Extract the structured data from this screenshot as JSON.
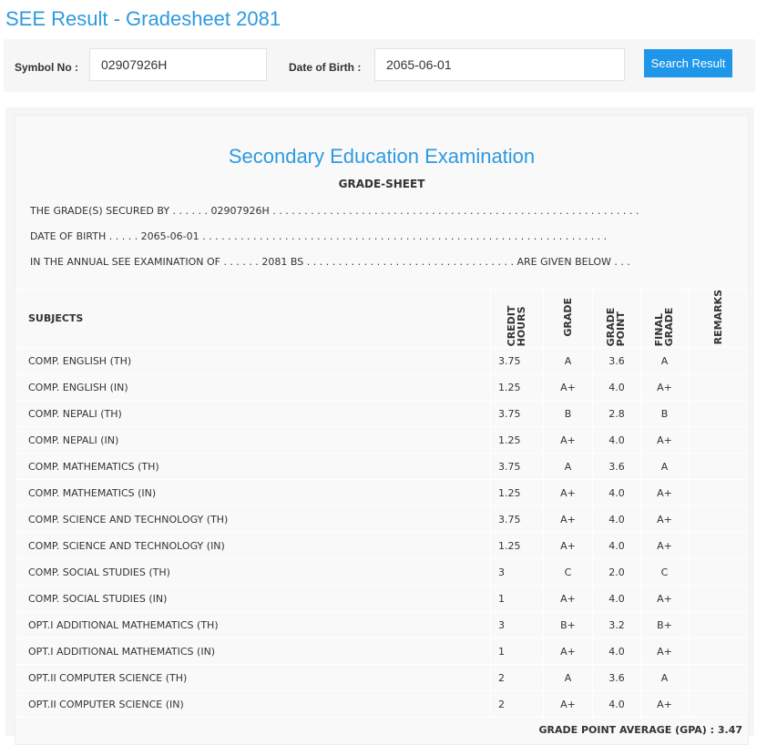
{
  "title": "SEE Result - Gradesheet 2081",
  "search": {
    "symbol_label": "Symbol No :",
    "symbol_value": "02907926H",
    "dob_label": "Date of Birth :",
    "dob_value": "2065-06-01",
    "button": "Search Result"
  },
  "sheet": {
    "heading": "Secondary Education Examination",
    "subheading": "GRADE-SHEET",
    "line1": "THE GRADE(S) SECURED BY . . . . . . 02907926H . . . . . . . . . . . . . . . . . . . . . . . . . . . . . . . . . . . . . . . . . . . . . . . . . . . . . . . . . .",
    "line2": "DATE OF BIRTH . . . . . 2065-06-01 . . . . . . . . . . . . . . . . . . . . . . . . . . . . . . . . . . . . . . . . . . . . . . . . . . . . . . . . . . . . . . . .",
    "line3": "IN THE ANNUAL SEE EXAMINATION OF . . . . . . 2081 BS . . . . . . . . . . . . . . . . . . . . . . . . . . . . . . . . . ARE GIVEN BELOW . . .",
    "headers": {
      "subjects": "SUBJECTS",
      "credit": "CREDIT HOURS",
      "grade": "GRADE",
      "gp": "GRADE POINT",
      "final": "FINAL GRADE",
      "remarks": "REMARKS"
    },
    "rows": [
      [
        "COMP. ENGLISH (TH)",
        "3.75",
        "A",
        "3.6",
        "A"
      ],
      [
        "COMP. ENGLISH (IN)",
        "1.25",
        "A+",
        "4.0",
        "A+"
      ],
      [
        "COMP. NEPALI (TH)",
        "3.75",
        "B",
        "2.8",
        "B"
      ],
      [
        "COMP. NEPALI (IN)",
        "1.25",
        "A+",
        "4.0",
        "A+"
      ],
      [
        "COMP. MATHEMATICS (TH)",
        "3.75",
        "A",
        "3.6",
        "A"
      ],
      [
        "COMP. MATHEMATICS (IN)",
        "1.25",
        "A+",
        "4.0",
        "A+"
      ],
      [
        "COMP. SCIENCE AND TECHNOLOGY (TH)",
        "3.75",
        "A+",
        "4.0",
        "A+"
      ],
      [
        "COMP. SCIENCE AND TECHNOLOGY (IN)",
        "1.25",
        "A+",
        "4.0",
        "A+"
      ],
      [
        "COMP. SOCIAL STUDIES (TH)",
        "3",
        "C",
        "2.0",
        "C"
      ],
      [
        "COMP. SOCIAL STUDIES (IN)",
        "1",
        "A+",
        "4.0",
        "A+"
      ],
      [
        "OPT.I ADDITIONAL MATHEMATICS (TH)",
        "3",
        "B+",
        "3.2",
        "B+"
      ],
      [
        "OPT.I ADDITIONAL MATHEMATICS (IN)",
        "1",
        "A+",
        "4.0",
        "A+"
      ],
      [
        "OPT.II COMPUTER SCIENCE (TH)",
        "2",
        "A",
        "3.6",
        "A"
      ],
      [
        "OPT.II COMPUTER SCIENCE (IN)",
        "2",
        "A+",
        "4.0",
        "A+"
      ]
    ],
    "gpa": "GRADE POINT AVERAGE (GPA) : 3.47"
  }
}
